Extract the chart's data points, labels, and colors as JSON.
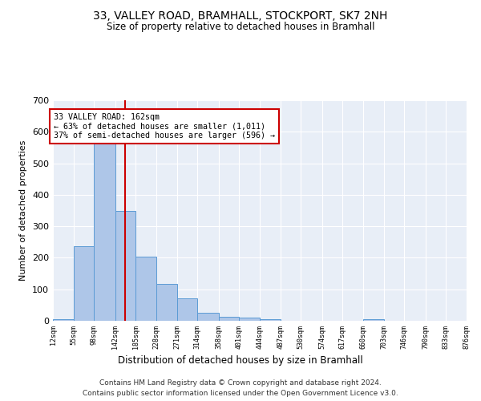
{
  "title": "33, VALLEY ROAD, BRAMHALL, STOCKPORT, SK7 2NH",
  "subtitle": "Size of property relative to detached houses in Bramhall",
  "xlabel": "Distribution of detached houses by size in Bramhall",
  "ylabel": "Number of detached properties",
  "footer1": "Contains HM Land Registry data © Crown copyright and database right 2024.",
  "footer2": "Contains public sector information licensed under the Open Government Licence v3.0.",
  "annotation_line1": "33 VALLEY ROAD: 162sqm",
  "annotation_line2": "← 63% of detached houses are smaller (1,011)",
  "annotation_line3": "37% of semi-detached houses are larger (596) →",
  "property_size": 162,
  "bin_edges": [
    12,
    55,
    98,
    142,
    185,
    228,
    271,
    314,
    358,
    401,
    444,
    487,
    530,
    574,
    617,
    660,
    703,
    746,
    790,
    833,
    876
  ],
  "bar_heights": [
    5,
    238,
    588,
    348,
    203,
    116,
    72,
    25,
    13,
    9,
    6,
    0,
    0,
    0,
    0,
    5,
    0,
    0,
    0,
    0
  ],
  "bar_color": "#aec6e8",
  "bar_edge_color": "#5b9bd5",
  "vline_color": "#cc0000",
  "bg_color": "#e8eef7",
  "grid_color": "#ffffff",
  "ylim": [
    0,
    700
  ],
  "yticks": [
    0,
    100,
    200,
    300,
    400,
    500,
    600,
    700
  ]
}
